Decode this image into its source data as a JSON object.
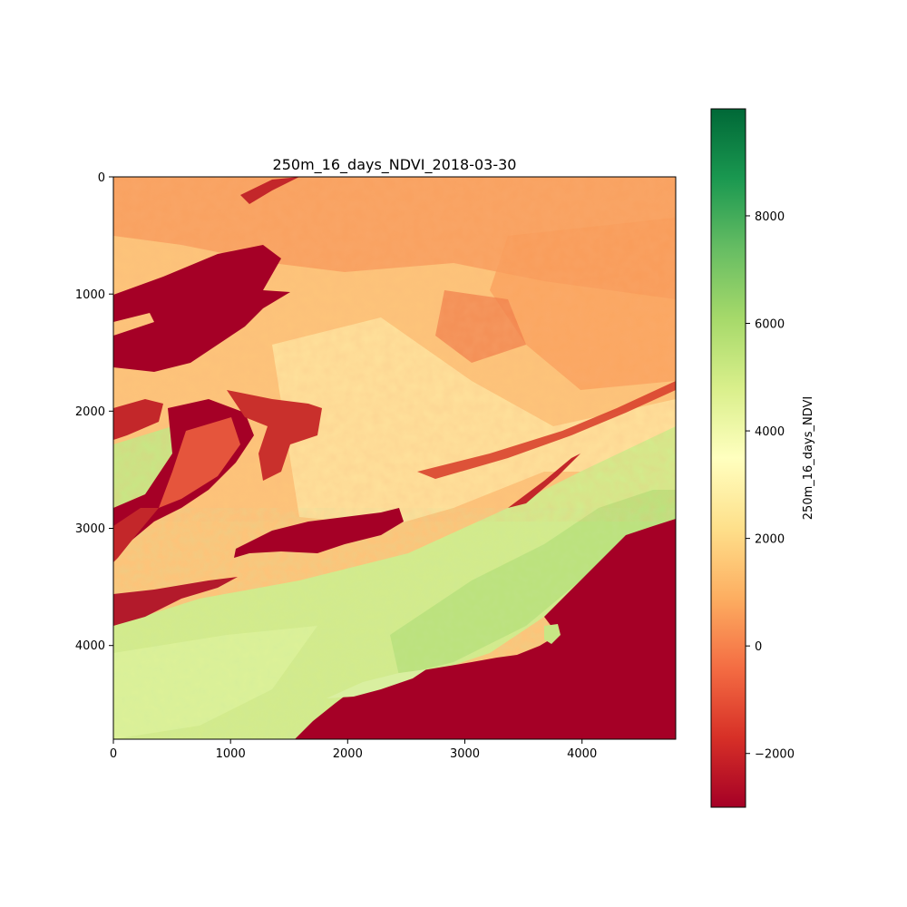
{
  "chart_data": {
    "type": "heatmap",
    "title": "250m_16_days_NDVI_2018-03-30",
    "xlabel": "",
    "ylabel": "",
    "x_range": [
      0,
      4800
    ],
    "y_range": [
      0,
      4800
    ],
    "y_inverted": true,
    "x_ticks": [
      0,
      1000,
      2000,
      3000,
      4000
    ],
    "y_ticks": [
      0,
      1000,
      2000,
      3000,
      4000
    ],
    "colormap": "RdYlGn",
    "colorbar": {
      "label": "250m_16_days_NDVI",
      "vmin": -3000,
      "vmax": 9990,
      "ticks": [
        -2000,
        0,
        2000,
        4000,
        6000,
        8000
      ],
      "tick_labels": [
        "−2000",
        "0",
        "2000",
        "4000",
        "6000",
        "8000"
      ]
    },
    "colormap_stops": [
      "#a50026",
      "#d73027",
      "#f46d43",
      "#fdae61",
      "#fee08b",
      "#ffffbf",
      "#d9ef8b",
      "#a6d96a",
      "#66bd63",
      "#1a9850",
      "#006837"
    ],
    "grid": false
  }
}
